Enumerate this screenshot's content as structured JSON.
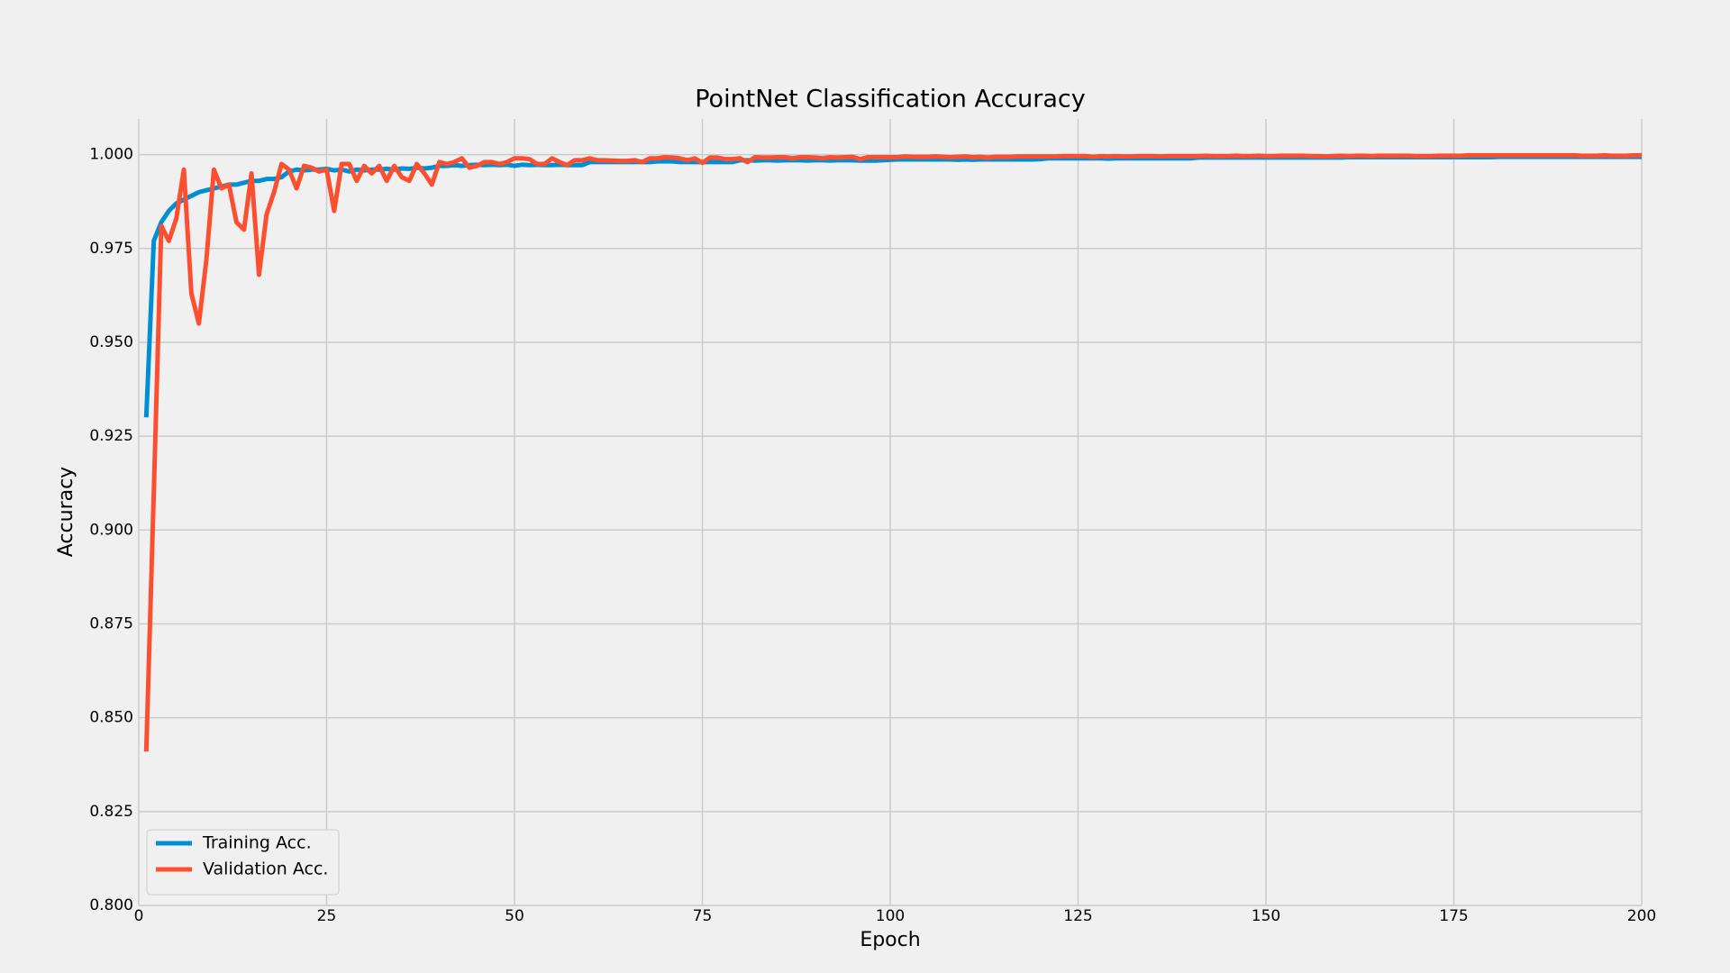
{
  "chart_data": {
    "type": "line",
    "title": "PointNet Classification Accuracy",
    "xlabel": "Epoch",
    "ylabel": "Accuracy",
    "xlim": [
      0,
      200
    ],
    "ylim": [
      0.8,
      1.0095
    ],
    "xticks": [
      0,
      25,
      50,
      75,
      100,
      125,
      150,
      175,
      200
    ],
    "yticks": [
      {
        "value": 0.8,
        "label": "0.800"
      },
      {
        "value": 0.825,
        "label": "0.825"
      },
      {
        "value": 0.85,
        "label": "0.850"
      },
      {
        "value": 0.875,
        "label": "0.875"
      },
      {
        "value": 0.9,
        "label": "0.900"
      },
      {
        "value": 0.925,
        "label": "0.925"
      },
      {
        "value": 0.95,
        "label": "0.950"
      },
      {
        "value": 0.975,
        "label": "0.975"
      },
      {
        "value": 1.0,
        "label": "1.000"
      }
    ],
    "grid": true,
    "legend": "lower left",
    "x": [
      1,
      2,
      3,
      4,
      5,
      6,
      7,
      8,
      9,
      10,
      11,
      12,
      13,
      14,
      15,
      16,
      17,
      18,
      19,
      20,
      21,
      22,
      23,
      24,
      25,
      26,
      27,
      28,
      29,
      30,
      31,
      32,
      33,
      34,
      35,
      36,
      37,
      38,
      39,
      40,
      41,
      42,
      43,
      44,
      45,
      46,
      47,
      48,
      49,
      50,
      51,
      52,
      53,
      54,
      55,
      56,
      57,
      58,
      59,
      60,
      61,
      62,
      63,
      64,
      65,
      66,
      67,
      68,
      69,
      70,
      71,
      72,
      73,
      74,
      75,
      76,
      77,
      78,
      79,
      80,
      81,
      82,
      83,
      84,
      85,
      86,
      87,
      88,
      89,
      90,
      91,
      92,
      93,
      94,
      95,
      96,
      97,
      98,
      99,
      100,
      101,
      102,
      103,
      104,
      105,
      106,
      107,
      108,
      109,
      110,
      111,
      112,
      113,
      114,
      115,
      116,
      117,
      118,
      119,
      120,
      121,
      122,
      123,
      124,
      125,
      126,
      127,
      128,
      129,
      130,
      131,
      132,
      133,
      134,
      135,
      136,
      137,
      138,
      139,
      140,
      141,
      142,
      143,
      144,
      145,
      146,
      147,
      148,
      149,
      150,
      151,
      152,
      153,
      154,
      155,
      156,
      157,
      158,
      159,
      160,
      161,
      162,
      163,
      164,
      165,
      166,
      167,
      168,
      169,
      170,
      171,
      172,
      173,
      174,
      175,
      176,
      177,
      178,
      179,
      180,
      181,
      182,
      183,
      184,
      185,
      186,
      187,
      188,
      189,
      190,
      191,
      192,
      193,
      194,
      195,
      196,
      197,
      198,
      199,
      200
    ],
    "series": [
      {
        "name": "Training Acc.",
        "color": "#008fd5",
        "values": [
          0.93,
          0.977,
          0.982,
          0.985,
          0.987,
          0.988,
          0.989,
          0.99,
          0.9905,
          0.991,
          0.9915,
          0.992,
          0.992,
          0.9925,
          0.993,
          0.993,
          0.9935,
          0.9935,
          0.994,
          0.9955,
          0.996,
          0.9958,
          0.996,
          0.996,
          0.9962,
          0.9958,
          0.996,
          0.9955,
          0.996,
          0.9958,
          0.996,
          0.996,
          0.9962,
          0.996,
          0.9963,
          0.9962,
          0.9965,
          0.9963,
          0.9965,
          0.997,
          0.997,
          0.9972,
          0.997,
          0.9972,
          0.9973,
          0.9972,
          0.9973,
          0.9972,
          0.9973,
          0.997,
          0.9973,
          0.9972,
          0.9973,
          0.9972,
          0.9972,
          0.9973,
          0.9972,
          0.9972,
          0.9972,
          0.998,
          0.998,
          0.998,
          0.998,
          0.998,
          0.998,
          0.998,
          0.998,
          0.998,
          0.9982,
          0.9982,
          0.9982,
          0.998,
          0.998,
          0.998,
          0.998,
          0.998,
          0.998,
          0.998,
          0.998,
          0.9985,
          0.9985,
          0.9984,
          0.9985,
          0.9985,
          0.9984,
          0.9985,
          0.9985,
          0.9985,
          0.9984,
          0.9985,
          0.9985,
          0.9984,
          0.9985,
          0.9985,
          0.9985,
          0.9984,
          0.9984,
          0.9984,
          0.9985,
          0.9986,
          0.9987,
          0.9987,
          0.9987,
          0.9987,
          0.9987,
          0.9987,
          0.9987,
          0.9987,
          0.9986,
          0.9987,
          0.9986,
          0.9987,
          0.9987,
          0.9987,
          0.9987,
          0.9987,
          0.9987,
          0.9987,
          0.9987,
          0.9988,
          0.999,
          0.999,
          0.999,
          0.999,
          0.999,
          0.999,
          0.999,
          0.999,
          0.9989,
          0.999,
          0.999,
          0.999,
          0.999,
          0.999,
          0.999,
          0.999,
          0.999,
          0.999,
          0.999,
          0.999,
          0.9992,
          0.9992,
          0.9992,
          0.9992,
          0.9992,
          0.9992,
          0.9992,
          0.9992,
          0.9992,
          0.9992,
          0.9992,
          0.9992,
          0.9992,
          0.9992,
          0.9992,
          0.9992,
          0.9992,
          0.9992,
          0.9992,
          0.9992,
          0.9993,
          0.9993,
          0.9993,
          0.9993,
          0.9993,
          0.9993,
          0.9993,
          0.9993,
          0.9993,
          0.9993,
          0.9993,
          0.9993,
          0.9993,
          0.9993,
          0.9993,
          0.9993,
          0.9993,
          0.9993,
          0.9993,
          0.9993,
          0.9994,
          0.9994,
          0.9994,
          0.9994,
          0.9994,
          0.9994,
          0.9994,
          0.9994,
          0.9994,
          0.9994,
          0.9994,
          0.9994,
          0.9994,
          0.9994,
          0.9994,
          0.9994,
          0.9994,
          0.9994,
          0.9994,
          0.9994
        ]
      },
      {
        "name": "Validation Acc.",
        "color": "#fc4f30",
        "values": [
          0.841,
          0.91,
          0.981,
          0.977,
          0.983,
          0.996,
          0.963,
          0.955,
          0.972,
          0.996,
          0.991,
          0.992,
          0.982,
          0.98,
          0.995,
          0.968,
          0.984,
          0.99,
          0.9975,
          0.996,
          0.991,
          0.997,
          0.9965,
          0.9955,
          0.996,
          0.985,
          0.9975,
          0.9975,
          0.993,
          0.997,
          0.995,
          0.997,
          0.993,
          0.997,
          0.994,
          0.993,
          0.9975,
          0.995,
          0.992,
          0.998,
          0.9975,
          0.998,
          0.999,
          0.9965,
          0.997,
          0.998,
          0.998,
          0.9975,
          0.998,
          0.999,
          0.999,
          0.9988,
          0.9975,
          0.9975,
          0.999,
          0.998,
          0.9972,
          0.9985,
          0.9985,
          0.999,
          0.9985,
          0.9985,
          0.9984,
          0.9983,
          0.9983,
          0.9985,
          0.998,
          0.999,
          0.999,
          0.9993,
          0.9992,
          0.999,
          0.9985,
          0.999,
          0.9978,
          0.9992,
          0.9992,
          0.9988,
          0.9988,
          0.999,
          0.998,
          0.9993,
          0.9992,
          0.9992,
          0.9993,
          0.9993,
          0.999,
          0.9993,
          0.9993,
          0.9992,
          0.999,
          0.9993,
          0.9992,
          0.9993,
          0.9994,
          0.9988,
          0.9993,
          0.9993,
          0.9993,
          0.9993,
          0.9993,
          0.9995,
          0.9994,
          0.9994,
          0.9994,
          0.9995,
          0.9994,
          0.9993,
          0.9994,
          0.9995,
          0.9993,
          0.9994,
          0.9992,
          0.9994,
          0.9994,
          0.9994,
          0.9995,
          0.9995,
          0.9995,
          0.9995,
          0.9995,
          0.9995,
          0.9996,
          0.9996,
          0.9996,
          0.9996,
          0.9994,
          0.9996,
          0.9995,
          0.9996,
          0.9995,
          0.9995,
          0.9996,
          0.9996,
          0.9996,
          0.9995,
          0.9996,
          0.9996,
          0.9996,
          0.9996,
          0.9996,
          0.9997,
          0.9996,
          0.9996,
          0.9996,
          0.9997,
          0.9996,
          0.9996,
          0.9997,
          0.9996,
          0.9996,
          0.9997,
          0.9997,
          0.9997,
          0.9997,
          0.9996,
          0.9996,
          0.9995,
          0.9996,
          0.9997,
          0.9996,
          0.9997,
          0.9997,
          0.9996,
          0.9997,
          0.9997,
          0.9997,
          0.9997,
          0.9997,
          0.9996,
          0.9996,
          0.9996,
          0.9997,
          0.9997,
          0.9997,
          0.9997,
          0.9998,
          0.9998,
          0.9998,
          0.9998,
          0.9998,
          0.9998,
          0.9998,
          0.9998,
          0.9998,
          0.9998,
          0.9998,
          0.9998,
          0.9998,
          0.9998,
          0.9998,
          0.9997,
          0.9997,
          0.9997,
          0.9998,
          0.9997,
          0.9997,
          0.9997,
          0.9998,
          0.9998
        ]
      }
    ]
  }
}
